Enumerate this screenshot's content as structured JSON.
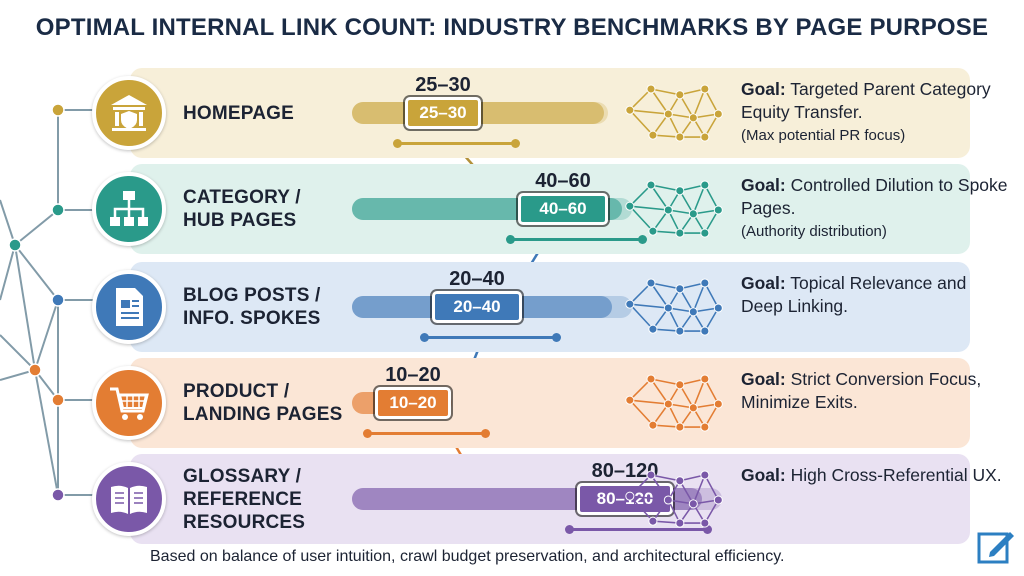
{
  "title": "OPTIMAL INTERNAL LINK COUNT: INDUSTRY BENCHMARKS BY PAGE PURPOSE",
  "rows": [
    {
      "label": "HOMEPAGE",
      "range": "25–30",
      "goal_prefix": "Goal:",
      "goal": " Targeted Parent Category Equity Transfer.",
      "note": "(Max potential PR focus)",
      "icon": "bank-shield-icon",
      "color": "#c9a43a",
      "bg": "#f7efd9"
    },
    {
      "label": "CATEGORY /\nHUB PAGES",
      "range": "40–60",
      "goal_prefix": "Goal:",
      "goal": " Controlled Dilution to Spoke Pages.",
      "note": "(Authority distribution)",
      "icon": "hierarchy-icon",
      "color": "#2a9a8a",
      "bg": "#dff1ec"
    },
    {
      "label": "BLOG POSTS /\nINFO. SPOKES",
      "range": "20–40",
      "goal_prefix": "Goal:",
      "goal": " Topical Relevance and Deep Linking.",
      "note": "",
      "icon": "document-icon",
      "color": "#3f79b8",
      "bg": "#dde8f5"
    },
    {
      "label": "PRODUCT /\nLANDING PAGES",
      "range": "10–20",
      "goal_prefix": "Goal:",
      "goal": " Strict Conversion Focus, Minimize Exits.",
      "note": "",
      "icon": "shopping-cart-icon",
      "color": "#e37d33",
      "bg": "#fbe6d6"
    },
    {
      "label": "GLOSSARY /\nREFERENCE\nRESOURCES",
      "range": "80–120",
      "goal_prefix": "Goal:",
      "goal": " High Cross-Referential UX.",
      "note": "",
      "icon": "open-book-icon",
      "color": "#7a58a8",
      "bg": "#e9e1f2"
    }
  ],
  "footer": "Based on balance of user intuition, crawl budget preservation, and architectural efficiency."
}
